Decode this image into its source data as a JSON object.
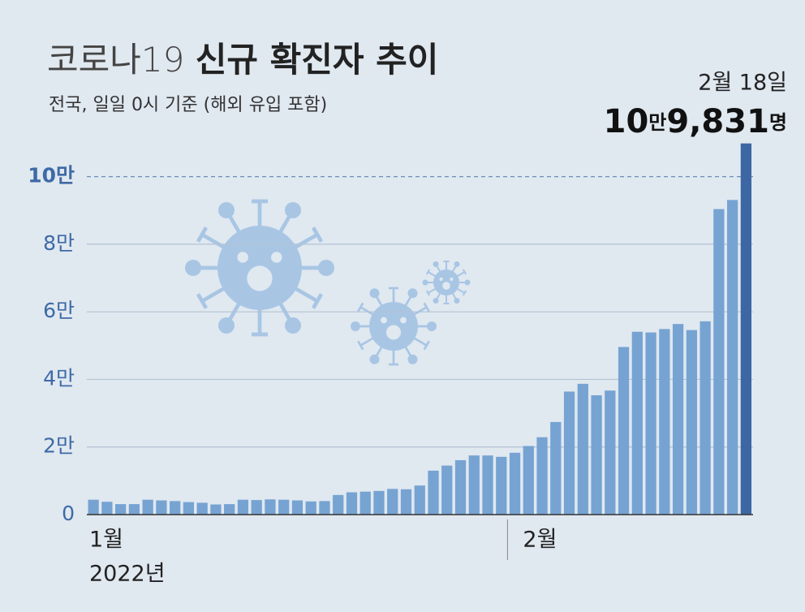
{
  "chart_data": {
    "type": "bar",
    "title": "코로나19 신규 확진자 추이",
    "subtitle": "전국, 일일 0시 기준 (해외 유입 포함)",
    "annotation": "2월 18일",
    "year_label": "2022년",
    "categories": [
      "1월",
      null,
      null,
      null,
      null,
      null,
      null,
      null,
      null,
      null,
      null,
      null,
      null,
      null,
      null,
      null,
      null,
      null,
      null,
      null,
      null,
      null,
      null,
      null,
      null,
      null,
      null,
      null,
      null,
      null,
      null,
      "2월",
      null,
      null,
      null,
      null,
      null,
      null,
      null,
      null,
      null,
      null,
      null,
      null,
      null,
      null,
      null,
      null,
      null
    ],
    "values": [
      4400,
      3800,
      3100,
      3100,
      4400,
      4200,
      4000,
      3700,
      3500,
      3000,
      3100,
      4400,
      4300,
      4500,
      4400,
      4200,
      3900,
      4000,
      5800,
      6600,
      6800,
      7000,
      7600,
      7500,
      8600,
      13000,
      14500,
      16100,
      17500,
      17500,
      17100,
      18300,
      20300,
      22900,
      27400,
      36400,
      38700,
      35300,
      36700,
      49600,
      54100,
      53900,
      54900,
      56400,
      54600,
      57200,
      90400,
      93100,
      109831
    ],
    "value_labels": [
      null,
      null,
      null,
      null,
      null,
      null,
      null,
      null,
      null,
      null,
      null,
      null,
      null,
      null,
      null,
      null,
      null,
      null,
      null,
      null,
      null,
      null,
      null,
      null,
      null,
      null,
      null,
      null,
      null,
      null,
      null,
      null,
      null,
      null,
      null,
      null,
      null,
      null,
      null,
      null,
      null,
      null,
      null,
      null,
      null,
      null,
      null,
      null,
      "10만9,831명"
    ],
    "color": "#76a3d2",
    "highlight_color": "#3d67a2",
    "ylim": [
      0,
      110000
    ],
    "yticks": [
      0,
      {
        "value": 20000,
        "label": "2만"
      },
      {
        "value": 40000,
        "label": "4만"
      },
      {
        "value": 60000,
        "label": "6만"
      },
      {
        "value": 80000,
        "label": "8만"
      },
      {
        "value": 100000,
        "label": "10만"
      }
    ],
    "grid": true
  }
}
